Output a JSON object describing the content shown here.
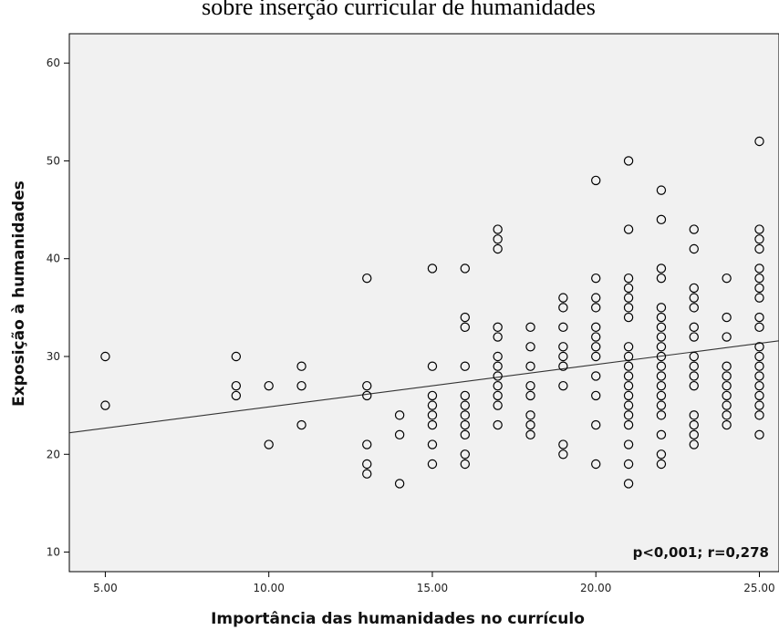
{
  "chart_data": {
    "type": "scatter",
    "title": "sobre inserção curricular de humanidades",
    "xlabel": "Importância das humanidades no currículo",
    "ylabel": "Exposição à humanidades",
    "xlim": [
      3.9,
      25.6
    ],
    "ylim": [
      8,
      63
    ],
    "xticks": [
      "5.00",
      "10.00",
      "15.00",
      "20.00",
      "25.00"
    ],
    "xtick_values": [
      5,
      10,
      15,
      20,
      25
    ],
    "yticks": [
      "10",
      "20",
      "30",
      "40",
      "50",
      "60"
    ],
    "ytick_values": [
      10,
      20,
      30,
      40,
      50,
      60
    ],
    "grid": false,
    "annotation": "p<0,001; r=0,278",
    "fit_line": {
      "type": "linear",
      "points": [
        [
          3.9,
          22.2
        ],
        [
          25.6,
          31.6
        ]
      ]
    },
    "points": [
      [
        5,
        30
      ],
      [
        5,
        25
      ],
      [
        9,
        30
      ],
      [
        9,
        27
      ],
      [
        9,
        26
      ],
      [
        10,
        27
      ],
      [
        10,
        21
      ],
      [
        11,
        29
      ],
      [
        11,
        27
      ],
      [
        11,
        23
      ],
      [
        13,
        38
      ],
      [
        13,
        27
      ],
      [
        13,
        26
      ],
      [
        13,
        21
      ],
      [
        13,
        19
      ],
      [
        13,
        18
      ],
      [
        14,
        24
      ],
      [
        14,
        22
      ],
      [
        14,
        17
      ],
      [
        15,
        39
      ],
      [
        15,
        29
      ],
      [
        15,
        26
      ],
      [
        15,
        25
      ],
      [
        15,
        24
      ],
      [
        15,
        23
      ],
      [
        15,
        21
      ],
      [
        15,
        19
      ],
      [
        16,
        39
      ],
      [
        16,
        34
      ],
      [
        16,
        33
      ],
      [
        16,
        29
      ],
      [
        16,
        26
      ],
      [
        16,
        25
      ],
      [
        16,
        24
      ],
      [
        16,
        23
      ],
      [
        16,
        22
      ],
      [
        16,
        20
      ],
      [
        16,
        19
      ],
      [
        17,
        43
      ],
      [
        17,
        42
      ],
      [
        17,
        41
      ],
      [
        17,
        33
      ],
      [
        17,
        32
      ],
      [
        17,
        30
      ],
      [
        17,
        29
      ],
      [
        17,
        28
      ],
      [
        17,
        27
      ],
      [
        17,
        26
      ],
      [
        17,
        25
      ],
      [
        17,
        23
      ],
      [
        18,
        33
      ],
      [
        18,
        31
      ],
      [
        18,
        29
      ],
      [
        18,
        27
      ],
      [
        18,
        26
      ],
      [
        18,
        24
      ],
      [
        18,
        23
      ],
      [
        18,
        22
      ],
      [
        19,
        36
      ],
      [
        19,
        35
      ],
      [
        19,
        33
      ],
      [
        19,
        31
      ],
      [
        19,
        30
      ],
      [
        19,
        29
      ],
      [
        19,
        27
      ],
      [
        19,
        21
      ],
      [
        19,
        20
      ],
      [
        20,
        48
      ],
      [
        20,
        38
      ],
      [
        20,
        36
      ],
      [
        20,
        35
      ],
      [
        20,
        33
      ],
      [
        20,
        32
      ],
      [
        20,
        31
      ],
      [
        20,
        30
      ],
      [
        20,
        28
      ],
      [
        20,
        26
      ],
      [
        20,
        23
      ],
      [
        20,
        19
      ],
      [
        21,
        50
      ],
      [
        21,
        43
      ],
      [
        21,
        38
      ],
      [
        21,
        37
      ],
      [
        21,
        36
      ],
      [
        21,
        35
      ],
      [
        21,
        34
      ],
      [
        21,
        31
      ],
      [
        21,
        30
      ],
      [
        21,
        29
      ],
      [
        21,
        28
      ],
      [
        21,
        27
      ],
      [
        21,
        26
      ],
      [
        21,
        25
      ],
      [
        21,
        24
      ],
      [
        21,
        23
      ],
      [
        21,
        21
      ],
      [
        21,
        19
      ],
      [
        21,
        17
      ],
      [
        22,
        47
      ],
      [
        22,
        44
      ],
      [
        22,
        39
      ],
      [
        22,
        38
      ],
      [
        22,
        35
      ],
      [
        22,
        34
      ],
      [
        22,
        33
      ],
      [
        22,
        32
      ],
      [
        22,
        31
      ],
      [
        22,
        30
      ],
      [
        22,
        29
      ],
      [
        22,
        28
      ],
      [
        22,
        27
      ],
      [
        22,
        26
      ],
      [
        22,
        25
      ],
      [
        22,
        24
      ],
      [
        22,
        22
      ],
      [
        22,
        20
      ],
      [
        22,
        19
      ],
      [
        23,
        43
      ],
      [
        23,
        41
      ],
      [
        23,
        37
      ],
      [
        23,
        36
      ],
      [
        23,
        35
      ],
      [
        23,
        33
      ],
      [
        23,
        32
      ],
      [
        23,
        30
      ],
      [
        23,
        29
      ],
      [
        23,
        28
      ],
      [
        23,
        27
      ],
      [
        23,
        24
      ],
      [
        23,
        23
      ],
      [
        23,
        22
      ],
      [
        23,
        21
      ],
      [
        24,
        38
      ],
      [
        24,
        34
      ],
      [
        24,
        32
      ],
      [
        24,
        29
      ],
      [
        24,
        28
      ],
      [
        24,
        27
      ],
      [
        24,
        26
      ],
      [
        24,
        25
      ],
      [
        24,
        24
      ],
      [
        24,
        23
      ],
      [
        25,
        52
      ],
      [
        25,
        43
      ],
      [
        25,
        42
      ],
      [
        25,
        41
      ],
      [
        25,
        39
      ],
      [
        25,
        38
      ],
      [
        25,
        37
      ],
      [
        25,
        36
      ],
      [
        25,
        34
      ],
      [
        25,
        33
      ],
      [
        25,
        31
      ],
      [
        25,
        30
      ],
      [
        25,
        29
      ],
      [
        25,
        28
      ],
      [
        25,
        27
      ],
      [
        25,
        26
      ],
      [
        25,
        25
      ],
      [
        25,
        24
      ],
      [
        25,
        22
      ]
    ],
    "colors": {
      "plot_background": "#f1f1f1",
      "marker": "#000000",
      "line": "#333333"
    }
  }
}
